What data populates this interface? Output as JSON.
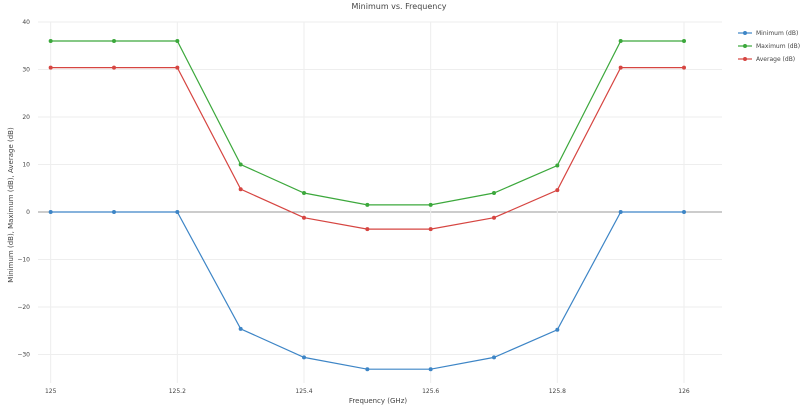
{
  "chart_data": {
    "type": "line",
    "title": "Minimum vs. Frequency",
    "xlabel": "Frequency (GHz)",
    "ylabel": "Minimum (dB), Maximum (dB), Average (dB)",
    "x": [
      125.0,
      125.1,
      125.2,
      125.3,
      125.4,
      125.5,
      125.6,
      125.7,
      125.8,
      125.9,
      126.0
    ],
    "xticks": [
      {
        "value": 125.0,
        "label": "125"
      },
      {
        "value": 125.2,
        "label": "125.2"
      },
      {
        "value": 125.4,
        "label": "125.4"
      },
      {
        "value": 125.6,
        "label": "125.6"
      },
      {
        "value": 125.8,
        "label": "125.8"
      },
      {
        "value": 126.0,
        "label": "126"
      }
    ],
    "yticks": [
      {
        "value": 40,
        "label": "40"
      },
      {
        "value": 30,
        "label": "30"
      },
      {
        "value": 20,
        "label": "20"
      },
      {
        "value": 10,
        "label": "10"
      },
      {
        "value": 0,
        "label": "0"
      },
      {
        "value": -10,
        "label": "−10"
      },
      {
        "value": -20,
        "label": "−20"
      },
      {
        "value": -30,
        "label": "−30"
      }
    ],
    "xlim": [
      124.98,
      126.06
    ],
    "ylim": [
      -36,
      40
    ],
    "grid": true,
    "legend_position": "top-right",
    "series": [
      {
        "name": "Minimum (dB)",
        "color": "#3d85c6",
        "values": [
          0,
          0,
          0,
          -24.6,
          -30.6,
          -33.1,
          -33.1,
          -30.6,
          -24.8,
          0,
          0
        ]
      },
      {
        "name": "Maximum (dB)",
        "color": "#3ca83c",
        "values": [
          36,
          36,
          36,
          10,
          4,
          1.5,
          1.5,
          4,
          9.8,
          36,
          36
        ]
      },
      {
        "name": "Average (dB)",
        "color": "#d64541",
        "values": [
          30.4,
          30.4,
          30.4,
          4.8,
          -1.2,
          -3.6,
          -3.6,
          -1.2,
          4.6,
          30.4,
          30.4
        ]
      }
    ]
  }
}
